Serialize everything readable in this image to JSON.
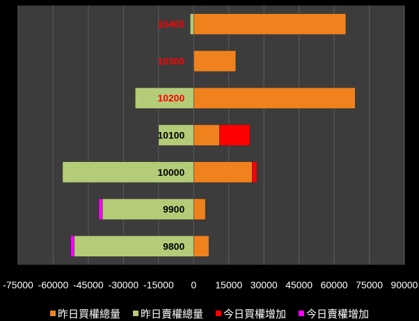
{
  "chart_data": {
    "type": "bar",
    "orientation": "horizontal",
    "stacked": true,
    "categories": [
      "10400",
      "10300",
      "10200",
      "10100",
      "10000",
      "9900",
      "9800"
    ],
    "series": [
      {
        "name": "昨日買權總量",
        "color": "#F0821E",
        "values": [
          65000,
          18000,
          69000,
          11000,
          25000,
          5000,
          6500
        ]
      },
      {
        "name": "昨日賣權總量",
        "color": "#B4CC78",
        "values": [
          -1500,
          0,
          -25000,
          -15000,
          -56000,
          -39000,
          -51000
        ]
      },
      {
        "name": "今日買權增加",
        "color": "#FF0000",
        "values": [
          0,
          0,
          0,
          13000,
          2000,
          0,
          0
        ]
      },
      {
        "name": "今日賣權增加",
        "color": "#FF00FF",
        "values": [
          0,
          0,
          0,
          0,
          0,
          -1500,
          -1500
        ]
      }
    ],
    "category_label_colors": [
      "#FF0000",
      "#FF0000",
      "#FF0000",
      "#000000",
      "#000000",
      "#000000",
      "#000000"
    ],
    "x_ticks": [
      "-75000",
      "-60000",
      "-45000",
      "-30000",
      "-15000",
      "0",
      "15000",
      "30000",
      "45000",
      "60000",
      "75000",
      "90000"
    ],
    "xlim": [
      -75000,
      90000
    ],
    "grid": true,
    "legend_position": "bottom",
    "plot_background": "#3C3C3C"
  }
}
